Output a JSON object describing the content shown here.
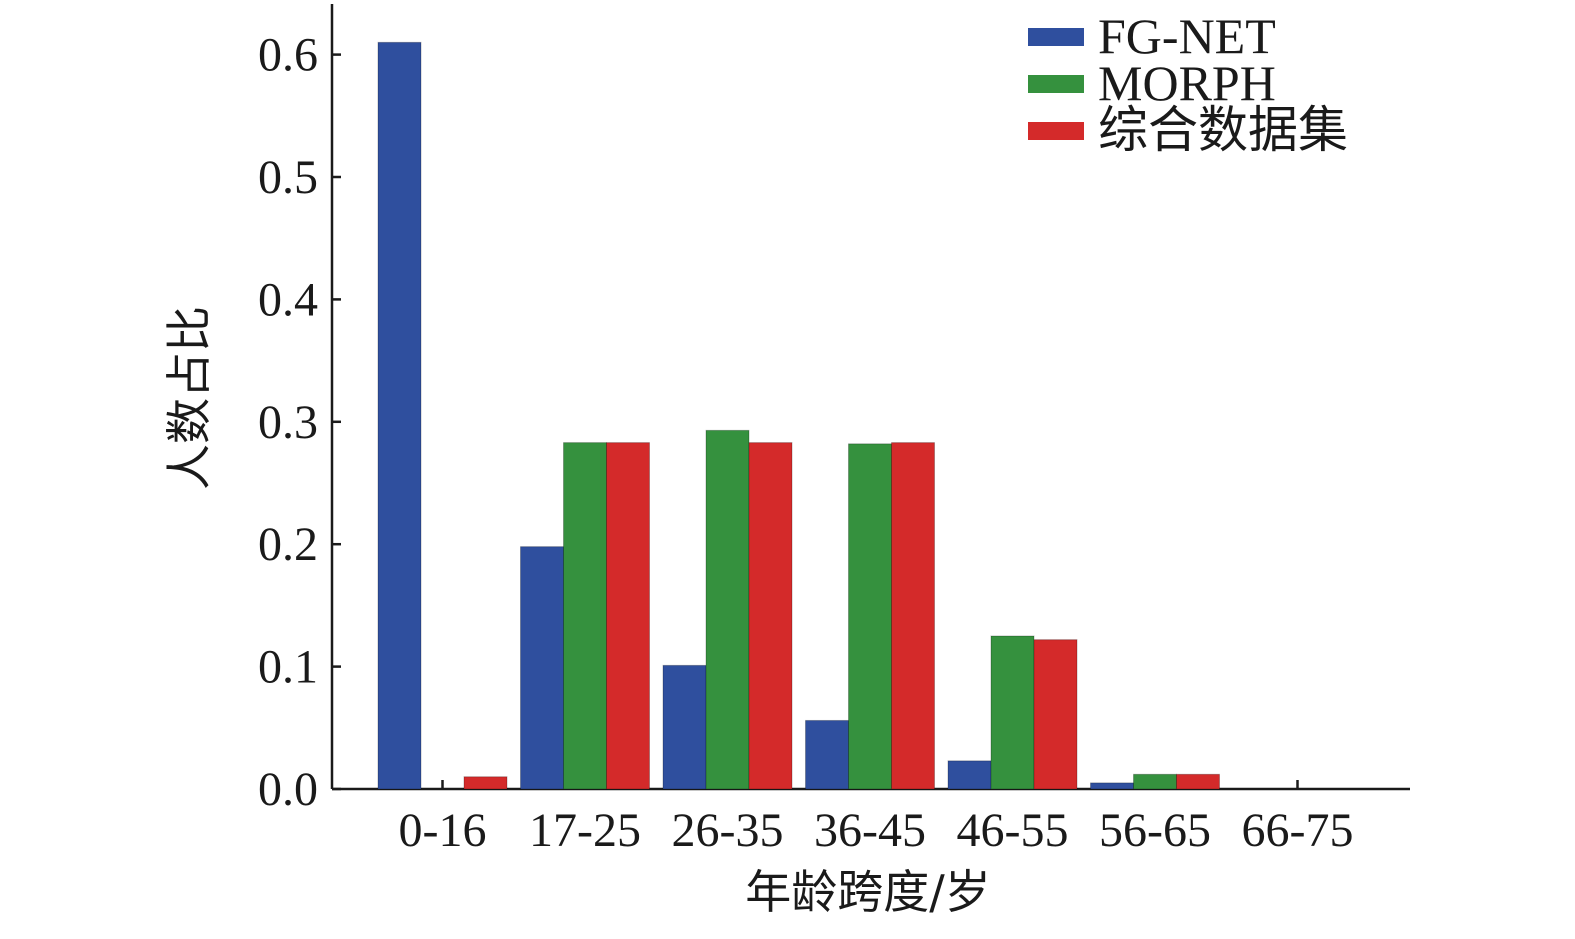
{
  "chart_data": {
    "type": "bar",
    "xlabel": "年龄跨度/岁",
    "ylabel": "人数占比",
    "categories": [
      "0-16",
      "17-25",
      "26-35",
      "36-45",
      "46-55",
      "56-65",
      "66-75"
    ],
    "ylim": [
      0,
      0.64
    ],
    "yticks": [
      "0.0",
      "0.1",
      "0.2",
      "0.3",
      "0.4",
      "0.5",
      "0.6"
    ],
    "grid": false,
    "legend_position": "top-right",
    "series": [
      {
        "name": "FG-NET",
        "color": "#2f4f9e",
        "values": [
          0.61,
          0.198,
          0.101,
          0.056,
          0.023,
          0.005,
          0.0
        ]
      },
      {
        "name": "MORPH",
        "color": "#35913e",
        "values": [
          0.0,
          0.283,
          0.293,
          0.282,
          0.125,
          0.012,
          0.0
        ]
      },
      {
        "name": "综合数据集",
        "color": "#d42a2a",
        "values": [
          0.01,
          0.283,
          0.283,
          0.283,
          0.122,
          0.012,
          0.0
        ]
      }
    ]
  }
}
